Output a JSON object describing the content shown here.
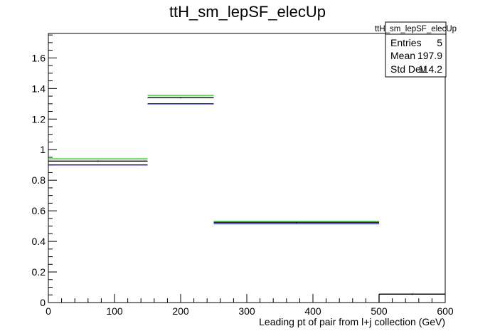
{
  "chart_data": {
    "type": "line",
    "title": "ttH_sm_lepSF_elecUp",
    "xlabel": "Leading pt of pair from l+j collection (GeV)",
    "ylabel": "",
    "xlim": [
      0,
      600
    ],
    "ylim": [
      0,
      1.76
    ],
    "x_ticks": [
      0,
      100,
      200,
      300,
      400,
      500,
      600
    ],
    "x_tick_labels": [
      "0",
      "100",
      "200",
      "300",
      "400",
      "500",
      "600"
    ],
    "y_ticks": [
      0,
      0.2,
      0.4,
      0.6,
      0.8,
      1,
      1.2,
      1.4,
      1.6
    ],
    "y_tick_labels": [
      "0",
      "0.2",
      "0.4",
      "0.6",
      "0.8",
      "1",
      "1.2",
      "1.4",
      "1.6"
    ],
    "bin_edges": [
      0,
      150,
      250,
      500,
      600
    ],
    "series": [
      {
        "color": "#000000",
        "values": [
          0.925,
          1.34,
          0.525,
          0.055
        ]
      },
      {
        "color": "#00cc00",
        "values": [
          0.94,
          1.355,
          0.53,
          null
        ]
      },
      {
        "color": "#000099",
        "values": [
          0.9,
          1.3,
          0.515,
          null
        ]
      }
    ],
    "stats_box": {
      "title": "ttH_sm_lepSF_elecUp",
      "rows": [
        {
          "label": "Entries",
          "value": "5"
        },
        {
          "label": "Mean",
          "value": "197.9"
        },
        {
          "label": "Std Dev",
          "value": "114.2"
        }
      ]
    }
  }
}
